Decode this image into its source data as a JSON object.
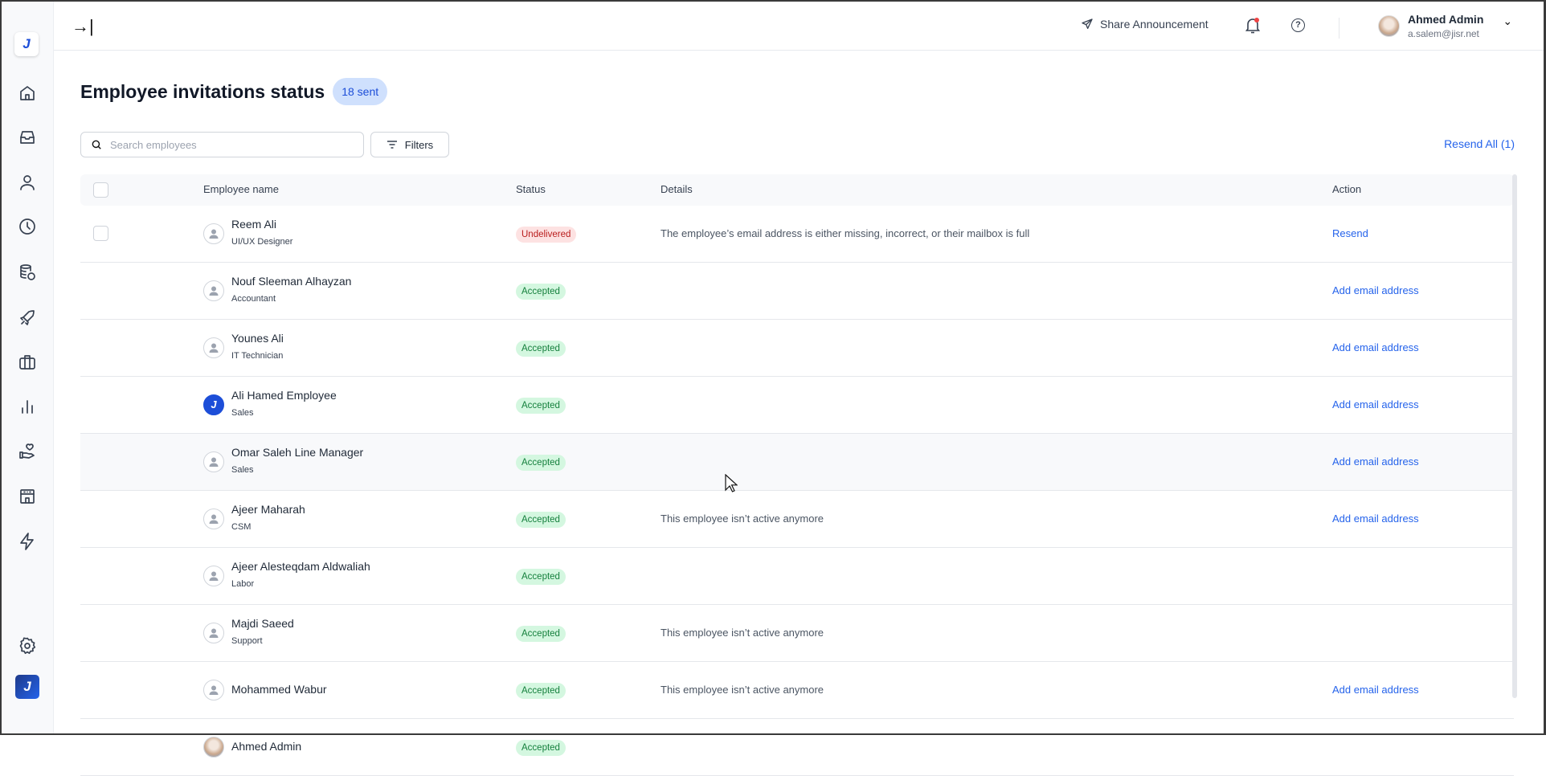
{
  "sidebar": {
    "logo": "J",
    "brand": "J",
    "items": [
      "home-icon",
      "inbox-icon",
      "user-icon",
      "clock-icon",
      "database-icon",
      "rocket-icon",
      "briefcase-icon",
      "chart-icon",
      "hand-heart-icon",
      "building-icon",
      "bolt-icon"
    ],
    "settings": "gear-icon"
  },
  "header": {
    "share": "Share Announcement",
    "user_name": "Ahmed Admin",
    "user_email": "a.salem@jisr.net"
  },
  "page": {
    "title": "Employee invitations status",
    "count": "18 sent",
    "search_placeholder": "Search employees",
    "filters": "Filters",
    "resend_all": "Resend All (1)"
  },
  "table": {
    "columns": {
      "name": "Employee name",
      "status": "Status",
      "details": "Details",
      "action": "Action"
    },
    "rows": [
      {
        "name": "Reem Ali",
        "role": "UI/UX Designer",
        "status": "Undelivered",
        "details": "The employee’s email address is either missing, incorrect, or their mailbox is full",
        "action": "Resend"
      },
      {
        "name": "Nouf Sleeman Alhayzan",
        "role": "Accountant",
        "status": "Accepted",
        "details": "",
        "action": "Add email address"
      },
      {
        "name": "Younes Ali",
        "role": "IT Technician",
        "status": "Accepted",
        "details": "",
        "action": "Add email address"
      },
      {
        "name": "Ali Hamed Employee",
        "role": "Sales",
        "status": "Accepted",
        "details": "",
        "action": "Add email address"
      },
      {
        "name": "Omar Saleh Line Manager",
        "role": "Sales",
        "status": "Accepted",
        "details": "",
        "action": "Add email address"
      },
      {
        "name": "Ajeer Maharah",
        "role": "CSM",
        "status": "Accepted",
        "details": "This employee isn’t active anymore",
        "action": "Add email address"
      },
      {
        "name": "Ajeer Alesteqdam Aldwaliah",
        "role": "Labor",
        "status": "Accepted",
        "details": "",
        "action": ""
      },
      {
        "name": "Majdi Saeed",
        "role": "Support",
        "status": "Accepted",
        "details": "This employee isn’t active anymore",
        "action": ""
      },
      {
        "name": "Mohammed Wabur",
        "role": "",
        "status": "Accepted",
        "details": "This employee isn’t active anymore",
        "action": "Add email address"
      },
      {
        "name": "Ahmed Admin",
        "role": "",
        "status": "Accepted",
        "details": "",
        "action": ""
      }
    ]
  },
  "colors": {
    "accent": "#2563eb",
    "accepted_bg": "#d4f7e0",
    "undelivered_bg": "#fde2e2"
  }
}
